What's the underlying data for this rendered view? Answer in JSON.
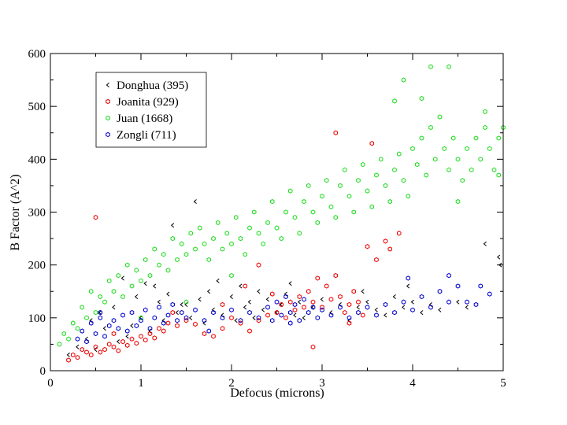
{
  "chart_data": {
    "type": "scatter",
    "title": "",
    "xlabel": "Defocus (microns)",
    "ylabel": "B Factor (A^2)",
    "xlim": [
      0,
      5
    ],
    "ylim": [
      0,
      600
    ],
    "xticks": [
      "0",
      "1",
      "2",
      "3",
      "4",
      "5"
    ],
    "yticks": [
      "0",
      "100",
      "200",
      "300",
      "400",
      "500",
      "600"
    ],
    "legend_position": "top-left",
    "series": [
      {
        "name": "Donghua (395)",
        "color": "#000000",
        "marker": "chevron",
        "points": [
          [
            0.2,
            30
          ],
          [
            0.3,
            45
          ],
          [
            0.4,
            60
          ],
          [
            0.45,
            95
          ],
          [
            0.5,
            40
          ],
          [
            0.55,
            110
          ],
          [
            0.6,
            80
          ],
          [
            0.7,
            120
          ],
          [
            0.75,
            55
          ],
          [
            0.8,
            175
          ],
          [
            0.9,
            85
          ],
          [
            0.95,
            140
          ],
          [
            1.0,
            100
          ],
          [
            1.05,
            165
          ],
          [
            1.1,
            75
          ],
          [
            1.2,
            130
          ],
          [
            1.25,
            95
          ],
          [
            1.3,
            145
          ],
          [
            1.35,
            275
          ],
          [
            1.4,
            110
          ],
          [
            1.5,
            125
          ],
          [
            1.55,
            100
          ],
          [
            1.6,
            320
          ],
          [
            1.65,
            135
          ],
          [
            1.7,
            90
          ],
          [
            1.75,
            150
          ],
          [
            1.8,
            115
          ],
          [
            1.85,
            170
          ],
          [
            1.9,
            105
          ],
          [
            2.0,
            140
          ],
          [
            2.05,
            95
          ],
          [
            2.1,
            160
          ],
          [
            2.15,
            120
          ],
          [
            2.2,
            130
          ],
          [
            2.25,
            100
          ],
          [
            2.3,
            150
          ],
          [
            2.35,
            115
          ],
          [
            2.4,
            135
          ],
          [
            2.5,
            110
          ],
          [
            2.55,
            125
          ],
          [
            2.6,
            145
          ],
          [
            2.7,
            105
          ],
          [
            2.75,
            130
          ],
          [
            2.8,
            100
          ],
          [
            2.9,
            120
          ],
          [
            3.0,
            135
          ],
          [
            3.1,
            110
          ],
          [
            3.2,
            125
          ],
          [
            3.3,
            95
          ],
          [
            3.4,
            120
          ],
          [
            3.5,
            130
          ],
          [
            3.6,
            115
          ],
          [
            3.7,
            105
          ],
          [
            3.8,
            140
          ],
          [
            3.9,
            120
          ],
          [
            4.0,
            130
          ],
          [
            4.1,
            110
          ],
          [
            4.2,
            125
          ],
          [
            4.3,
            115
          ],
          [
            4.5,
            130
          ],
          [
            4.6,
            120
          ],
          [
            4.8,
            240
          ],
          [
            4.95,
            215
          ],
          [
            4.97,
            200
          ],
          [
            3.95,
            160
          ],
          [
            3.45,
            150
          ],
          [
            2.65,
            165
          ],
          [
            1.45,
            125
          ],
          [
            0.85,
            65
          ],
          [
            1.15,
            160
          ]
        ]
      },
      {
        "name": "Joanita (929)",
        "color": "#ee0000",
        "marker": "hexagon",
        "points": [
          [
            0.2,
            20
          ],
          [
            0.25,
            30
          ],
          [
            0.3,
            25
          ],
          [
            0.35,
            40
          ],
          [
            0.4,
            35
          ],
          [
            0.45,
            30
          ],
          [
            0.5,
            45
          ],
          [
            0.5,
            290
          ],
          [
            0.55,
            35
          ],
          [
            0.6,
            40
          ],
          [
            0.65,
            50
          ],
          [
            0.7,
            45
          ],
          [
            0.75,
            38
          ],
          [
            0.8,
            55
          ],
          [
            0.85,
            48
          ],
          [
            0.9,
            60
          ],
          [
            0.95,
            52
          ],
          [
            1.0,
            65
          ],
          [
            1.05,
            58
          ],
          [
            1.1,
            70
          ],
          [
            1.15,
            62
          ],
          [
            1.2,
            80
          ],
          [
            1.25,
            75
          ],
          [
            1.3,
            90
          ],
          [
            1.4,
            85
          ],
          [
            1.5,
            95
          ],
          [
            1.6,
            88
          ],
          [
            1.7,
            70
          ],
          [
            1.8,
            65
          ],
          [
            1.9,
            80
          ],
          [
            2.0,
            100
          ],
          [
            2.1,
            90
          ],
          [
            2.2,
            75
          ],
          [
            2.3,
            95
          ],
          [
            2.4,
            105
          ],
          [
            2.5,
            110
          ],
          [
            2.55,
            125
          ],
          [
            2.6,
            100
          ],
          [
            2.65,
            130
          ],
          [
            2.7,
            115
          ],
          [
            2.75,
            140
          ],
          [
            2.8,
            120
          ],
          [
            2.85,
            150
          ],
          [
            2.9,
            130
          ],
          [
            2.95,
            175
          ],
          [
            3.0,
            120
          ],
          [
            3.05,
            160
          ],
          [
            3.1,
            135
          ],
          [
            3.15,
            180
          ],
          [
            3.2,
            140
          ],
          [
            3.25,
            110
          ],
          [
            3.3,
            125
          ],
          [
            3.35,
            150
          ],
          [
            3.4,
            130
          ],
          [
            3.45,
            105
          ],
          [
            3.5,
            235
          ],
          [
            3.6,
            210
          ],
          [
            3.7,
            245
          ],
          [
            3.75,
            230
          ],
          [
            3.85,
            260
          ],
          [
            2.9,
            45
          ],
          [
            2.3,
            200
          ],
          [
            1.35,
            110
          ],
          [
            0.7,
            70
          ],
          [
            3.15,
            450
          ],
          [
            3.55,
            430
          ],
          [
            1.9,
            125
          ],
          [
            2.45,
            145
          ],
          [
            3.3,
            90
          ],
          [
            2.15,
            160
          ]
        ]
      },
      {
        "name": "Juan (1668)",
        "color": "#22dd22",
        "marker": "hexagon",
        "points": [
          [
            0.1,
            50
          ],
          [
            0.15,
            70
          ],
          [
            0.2,
            60
          ],
          [
            0.25,
            90
          ],
          [
            0.3,
            80
          ],
          [
            0.35,
            120
          ],
          [
            0.4,
            100
          ],
          [
            0.45,
            150
          ],
          [
            0.5,
            110
          ],
          [
            0.55,
            140
          ],
          [
            0.6,
            130
          ],
          [
            0.65,
            170
          ],
          [
            0.7,
            150
          ],
          [
            0.75,
            180
          ],
          [
            0.8,
            140
          ],
          [
            0.85,
            200
          ],
          [
            0.9,
            160
          ],
          [
            0.95,
            190
          ],
          [
            1.0,
            170
          ],
          [
            1.05,
            210
          ],
          [
            1.1,
            180
          ],
          [
            1.15,
            230
          ],
          [
            1.2,
            200
          ],
          [
            1.25,
            220
          ],
          [
            1.3,
            190
          ],
          [
            1.35,
            250
          ],
          [
            1.4,
            210
          ],
          [
            1.45,
            240
          ],
          [
            1.5,
            220
          ],
          [
            1.55,
            260
          ],
          [
            1.6,
            230
          ],
          [
            1.65,
            270
          ],
          [
            1.7,
            240
          ],
          [
            1.75,
            210
          ],
          [
            1.8,
            250
          ],
          [
            1.85,
            280
          ],
          [
            1.9,
            230
          ],
          [
            1.95,
            260
          ],
          [
            2.0,
            240
          ],
          [
            2.05,
            290
          ],
          [
            2.1,
            250
          ],
          [
            2.15,
            220
          ],
          [
            2.2,
            270
          ],
          [
            2.25,
            300
          ],
          [
            2.3,
            260
          ],
          [
            2.35,
            240
          ],
          [
            2.4,
            280
          ],
          [
            2.45,
            320
          ],
          [
            2.5,
            270
          ],
          [
            2.55,
            250
          ],
          [
            2.6,
            300
          ],
          [
            2.65,
            340
          ],
          [
            2.7,
            290
          ],
          [
            2.75,
            260
          ],
          [
            2.8,
            320
          ],
          [
            2.85,
            350
          ],
          [
            2.9,
            300
          ],
          [
            2.95,
            280
          ],
          [
            3.0,
            330
          ],
          [
            3.05,
            360
          ],
          [
            3.1,
            310
          ],
          [
            3.15,
            290
          ],
          [
            3.2,
            350
          ],
          [
            3.25,
            380
          ],
          [
            3.3,
            330
          ],
          [
            3.35,
            300
          ],
          [
            3.4,
            360
          ],
          [
            3.45,
            390
          ],
          [
            3.5,
            340
          ],
          [
            3.55,
            310
          ],
          [
            3.6,
            370
          ],
          [
            3.65,
            400
          ],
          [
            3.7,
            350
          ],
          [
            3.75,
            320
          ],
          [
            3.8,
            380
          ],
          [
            3.85,
            410
          ],
          [
            3.9,
            360
          ],
          [
            3.95,
            330
          ],
          [
            4.0,
            420
          ],
          [
            4.05,
            390
          ],
          [
            4.1,
            440
          ],
          [
            4.15,
            370
          ],
          [
            4.2,
            460
          ],
          [
            4.25,
            400
          ],
          [
            4.3,
            480
          ],
          [
            4.35,
            420
          ],
          [
            4.4,
            380
          ],
          [
            4.45,
            440
          ],
          [
            4.5,
            400
          ],
          [
            4.55,
            360
          ],
          [
            4.6,
            420
          ],
          [
            4.65,
            380
          ],
          [
            4.7,
            440
          ],
          [
            4.75,
            400
          ],
          [
            4.8,
            460
          ],
          [
            4.85,
            420
          ],
          [
            4.9,
            380
          ],
          [
            4.95,
            440
          ],
          [
            5.0,
            460
          ],
          [
            4.2,
            575
          ],
          [
            4.4,
            575
          ],
          [
            3.9,
            550
          ],
          [
            4.1,
            515
          ],
          [
            3.8,
            510
          ],
          [
            4.95,
            370
          ],
          [
            4.5,
            320
          ],
          [
            4.8,
            490
          ],
          [
            1.0,
            100
          ],
          [
            1.5,
            130
          ],
          [
            2.0,
            180
          ]
        ]
      },
      {
        "name": "Zongli (711)",
        "color": "#0000cc",
        "marker": "hexagon",
        "points": [
          [
            0.3,
            60
          ],
          [
            0.35,
            75
          ],
          [
            0.4,
            55
          ],
          [
            0.45,
            90
          ],
          [
            0.5,
            70
          ],
          [
            0.55,
            100
          ],
          [
            0.6,
            65
          ],
          [
            0.65,
            85
          ],
          [
            0.7,
            95
          ],
          [
            0.75,
            80
          ],
          [
            0.8,
            105
          ],
          [
            0.85,
            75
          ],
          [
            0.9,
            110
          ],
          [
            0.95,
            85
          ],
          [
            1.0,
            95
          ],
          [
            1.05,
            115
          ],
          [
            1.1,
            80
          ],
          [
            1.15,
            100
          ],
          [
            1.2,
            120
          ],
          [
            1.25,
            90
          ],
          [
            1.3,
            105
          ],
          [
            1.35,
            125
          ],
          [
            1.4,
            95
          ],
          [
            1.45,
            110
          ],
          [
            1.5,
            100
          ],
          [
            1.6,
            115
          ],
          [
            1.7,
            95
          ],
          [
            1.8,
            110
          ],
          [
            1.9,
            100
          ],
          [
            2.0,
            115
          ],
          [
            2.1,
            95
          ],
          [
            2.2,
            110
          ],
          [
            2.3,
            100
          ],
          [
            2.4,
            120
          ],
          [
            2.45,
            95
          ],
          [
            2.5,
            130
          ],
          [
            2.55,
            105
          ],
          [
            2.6,
            140
          ],
          [
            2.65,
            110
          ],
          [
            2.7,
            125
          ],
          [
            2.75,
            95
          ],
          [
            2.8,
            135
          ],
          [
            2.85,
            110
          ],
          [
            2.9,
            120
          ],
          [
            2.95,
            100
          ],
          [
            3.0,
            115
          ],
          [
            3.1,
            105
          ],
          [
            3.2,
            120
          ],
          [
            3.3,
            100
          ],
          [
            3.4,
            110
          ],
          [
            3.5,
            120
          ],
          [
            3.6,
            105
          ],
          [
            3.7,
            125
          ],
          [
            3.8,
            110
          ],
          [
            3.9,
            130
          ],
          [
            4.0,
            115
          ],
          [
            4.1,
            140
          ],
          [
            4.2,
            120
          ],
          [
            4.3,
            150
          ],
          [
            4.4,
            130
          ],
          [
            4.5,
            160
          ],
          [
            4.6,
            130
          ],
          [
            4.7,
            125
          ],
          [
            4.75,
            160
          ],
          [
            4.85,
            145
          ],
          [
            4.4,
            180
          ],
          [
            2.65,
            90
          ],
          [
            1.75,
            75
          ],
          [
            0.55,
            110
          ],
          [
            3.95,
            175
          ]
        ]
      }
    ]
  }
}
